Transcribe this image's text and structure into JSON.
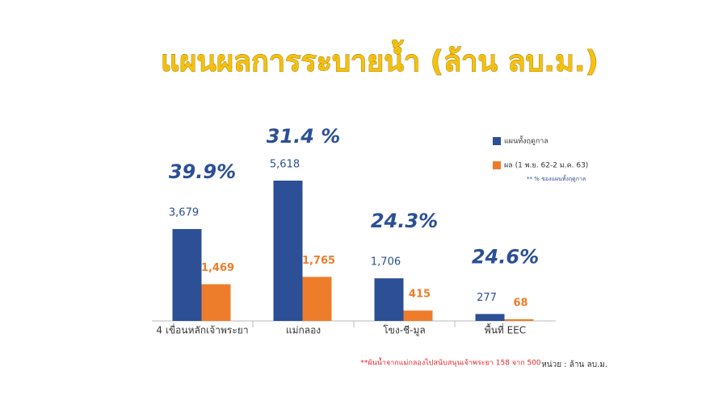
{
  "chart_data": {
    "type": "bar",
    "title": "แผนผลการระบายน้ำ  (ล้าน ลบ.ม.)",
    "categories": [
      "4 เขื่อนหลักเจ้าพระยา",
      "แม่กลอง",
      "โขง-ชี-มูล",
      "พื้นที่ EEC"
    ],
    "series": [
      {
        "name": "แผนทั้งฤดูกาล",
        "color": "#2c4f95",
        "values": [
          3679,
          5618,
          1706,
          277
        ],
        "value_labels": [
          "3,679",
          "5,618",
          "1,706",
          "277"
        ]
      },
      {
        "name": "ผล (1 พ.ย. 62-2 ม.ค. 63)",
        "color": "#ee7d2b",
        "values": [
          1469,
          1765,
          415,
          68
        ],
        "value_labels": [
          "1,469",
          "1,765",
          "415",
          "68"
        ]
      }
    ],
    "annotations": [
      "39.9%",
      "31.4 %",
      "24.3%",
      "24.6%"
    ],
    "legend_note": "** % ของแผนทั้งฤดูกาล",
    "footnote": "**ผันน้ำจากแม่กลองไปสนับสนุนเจ้าพระยา 158 จาก 500",
    "unit": "หน่วย : ล้าน ลบ.ม."
  }
}
